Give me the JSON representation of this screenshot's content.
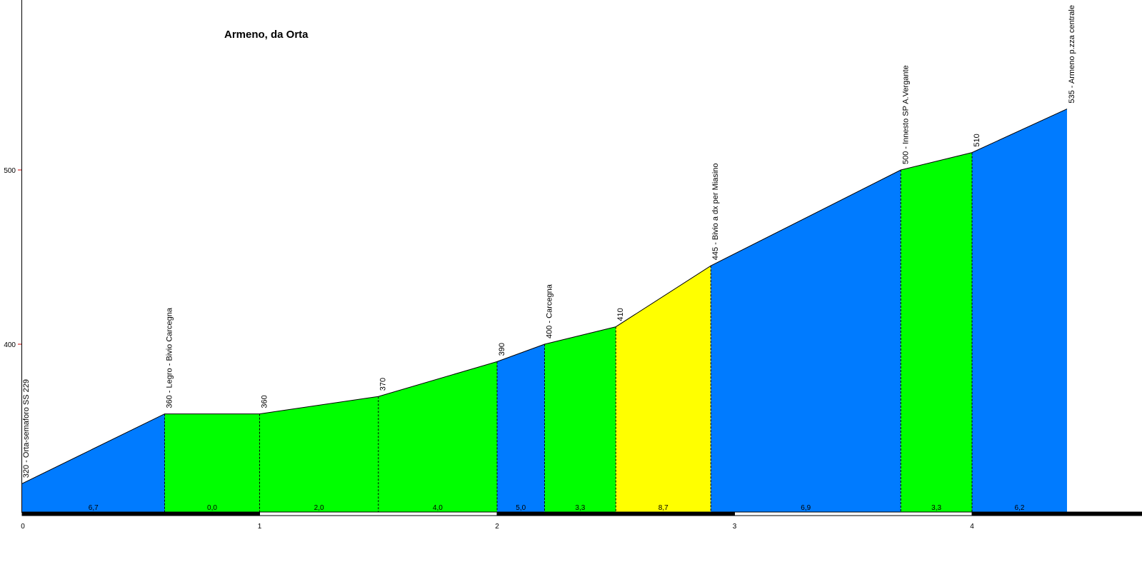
{
  "chart_data": {
    "type": "area",
    "title": "Armeno, da Orta",
    "xlabel": "",
    "ylabel": "",
    "x_ticks": [
      0,
      1,
      2,
      3,
      4
    ],
    "y_ticks": [
      400,
      500
    ],
    "xlim": [
      0,
      4.7
    ],
    "ylim": [
      303,
      598
    ],
    "grid": false,
    "legend": "none",
    "colors": {
      "blue": "#007BFF",
      "green": "#00FF00",
      "yellow": "#FFFF00",
      "axis": "#000000",
      "y_tick_mark": "#CC0000"
    },
    "points": [
      {
        "x": 0.0,
        "elevation": 320,
        "label": "320 - Orta-semaforo SS 229"
      },
      {
        "x": 0.6,
        "elevation": 360,
        "label": "360 - Legro - Bivio Carcegna"
      },
      {
        "x": 1.0,
        "elevation": 360,
        "label": "360"
      },
      {
        "x": 1.5,
        "elevation": 370,
        "label": "370"
      },
      {
        "x": 2.0,
        "elevation": 390,
        "label": "390"
      },
      {
        "x": 2.2,
        "elevation": 400,
        "label": "400 - Carcegna"
      },
      {
        "x": 2.5,
        "elevation": 410,
        "label": "410"
      },
      {
        "x": 2.9,
        "elevation": 445,
        "label": "445 - Bivio a dx per Miasino"
      },
      {
        "x": 3.7,
        "elevation": 500,
        "label": "500 - Innesto SP A.Vergante"
      },
      {
        "x": 4.0,
        "elevation": 510,
        "label": "510"
      },
      {
        "x": 4.4,
        "elevation": 535,
        "label": "535 - Armeno p.zza centrale"
      }
    ],
    "segments": [
      {
        "gradient": "6,7",
        "color": "blue"
      },
      {
        "gradient": "0,0",
        "color": "green"
      },
      {
        "gradient": "2,0",
        "color": "green"
      },
      {
        "gradient": "4,0",
        "color": "green"
      },
      {
        "gradient": "5,0",
        "color": "blue"
      },
      {
        "gradient": "3,3",
        "color": "green"
      },
      {
        "gradient": "8,7",
        "color": "yellow"
      },
      {
        "gradient": "6,9",
        "color": "blue"
      },
      {
        "gradient": "3,3",
        "color": "green"
      },
      {
        "gradient": "6,2",
        "color": "blue"
      }
    ]
  }
}
